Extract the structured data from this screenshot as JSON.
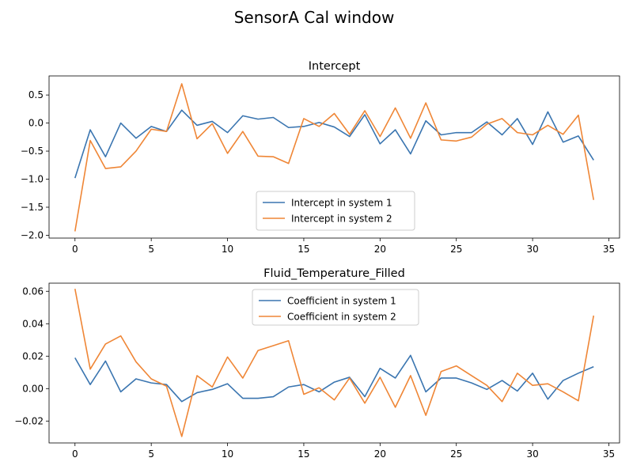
{
  "figure": {
    "title": "SensorA Cal window"
  },
  "colors": {
    "series1": "#3a75b0",
    "series2": "#ef8636",
    "axis": "#000000",
    "background": "#ffffff"
  },
  "chart_data": [
    {
      "type": "line",
      "title": "Intercept",
      "xlabel": "",
      "ylabel": "",
      "xlim": [
        -1.7,
        35.7
      ],
      "ylim": [
        -2.05,
        0.84
      ],
      "xticks": [
        0,
        5,
        10,
        15,
        20,
        25,
        30,
        35
      ],
      "yticks": [
        0.5,
        0.0,
        -0.5,
        -1.0,
        -1.5,
        -2.0
      ],
      "ytick_labels": [
        "0.5",
        "0.0",
        "−0.5",
        "−1.0",
        "−1.5",
        "−2.0"
      ],
      "legend": "lower-center",
      "grid": false,
      "x": [
        0,
        1,
        2,
        3,
        4,
        5,
        6,
        7,
        8,
        9,
        10,
        11,
        12,
        13,
        14,
        15,
        16,
        17,
        18,
        19,
        20,
        21,
        22,
        23,
        24,
        25,
        26,
        27,
        28,
        29,
        30,
        31,
        32,
        33,
        34
      ],
      "series": [
        {
          "name": "Intercept in system 1",
          "color": "#3a75b0",
          "values": [
            -0.98,
            -0.12,
            -0.6,
            0.0,
            -0.27,
            -0.06,
            -0.15,
            0.23,
            -0.04,
            0.03,
            -0.17,
            0.13,
            0.07,
            0.1,
            -0.08,
            -0.06,
            0.01,
            -0.07,
            -0.24,
            0.15,
            -0.37,
            -0.12,
            -0.55,
            0.04,
            -0.21,
            -0.17,
            -0.17,
            0.02,
            -0.21,
            0.08,
            -0.38,
            0.2,
            -0.34,
            -0.23,
            -0.66
          ]
        },
        {
          "name": "Intercept in system 2",
          "color": "#ef8636",
          "values": [
            -1.93,
            -0.31,
            -0.81,
            -0.78,
            -0.5,
            -0.11,
            -0.15,
            0.7,
            -0.28,
            -0.01,
            -0.54,
            -0.15,
            -0.59,
            -0.6,
            -0.72,
            0.08,
            -0.06,
            0.17,
            -0.2,
            0.22,
            -0.24,
            0.27,
            -0.27,
            0.36,
            -0.3,
            -0.32,
            -0.25,
            -0.02,
            0.08,
            -0.17,
            -0.21,
            -0.04,
            -0.2,
            0.14,
            -1.37
          ]
        }
      ]
    },
    {
      "type": "line",
      "title": "Fluid_Temperature_Filled",
      "xlabel": "",
      "ylabel": "",
      "xlim": [
        -1.7,
        35.7
      ],
      "ylim": [
        -0.0335,
        0.065
      ],
      "xticks": [
        0,
        5,
        10,
        15,
        20,
        25,
        30,
        35
      ],
      "yticks": [
        0.06,
        0.04,
        0.02,
        0.0,
        -0.02
      ],
      "ytick_labels": [
        "0.06",
        "0.04",
        "0.02",
        "0.00",
        "−0.02"
      ],
      "legend": "upper-center",
      "grid": false,
      "x": [
        0,
        1,
        2,
        3,
        4,
        5,
        6,
        7,
        8,
        9,
        10,
        11,
        12,
        13,
        14,
        15,
        16,
        17,
        18,
        19,
        20,
        21,
        22,
        23,
        24,
        25,
        26,
        27,
        28,
        29,
        30,
        31,
        32,
        33,
        34
      ],
      "series": [
        {
          "name": "Coefficient in system 1",
          "color": "#3a75b0",
          "values": [
            0.019,
            0.0025,
            0.017,
            -0.002,
            0.006,
            0.0035,
            0.0025,
            -0.008,
            -0.0025,
            -0.0005,
            0.003,
            -0.006,
            -0.006,
            -0.005,
            0.001,
            0.0025,
            -0.002,
            0.004,
            0.007,
            -0.005,
            0.0125,
            0.0065,
            0.0205,
            -0.002,
            0.0065,
            0.0065,
            0.0035,
            -0.0005,
            0.005,
            -0.0015,
            0.0095,
            -0.0065,
            0.005,
            0.0095,
            0.0135
          ]
        },
        {
          "name": "Coefficient in system 2",
          "color": "#ef8636",
          "values": [
            0.0615,
            0.012,
            0.0275,
            0.0325,
            0.0165,
            0.006,
            0.0015,
            -0.0295,
            0.008,
            0.001,
            0.0195,
            0.0065,
            0.0235,
            0.0265,
            0.0295,
            -0.0035,
            0.0005,
            -0.007,
            0.0065,
            -0.009,
            0.007,
            -0.0115,
            0.008,
            -0.0165,
            0.0105,
            0.014,
            0.008,
            0.002,
            -0.008,
            0.0095,
            0.002,
            0.003,
            -0.002,
            -0.0075,
            0.045
          ]
        }
      ]
    }
  ]
}
